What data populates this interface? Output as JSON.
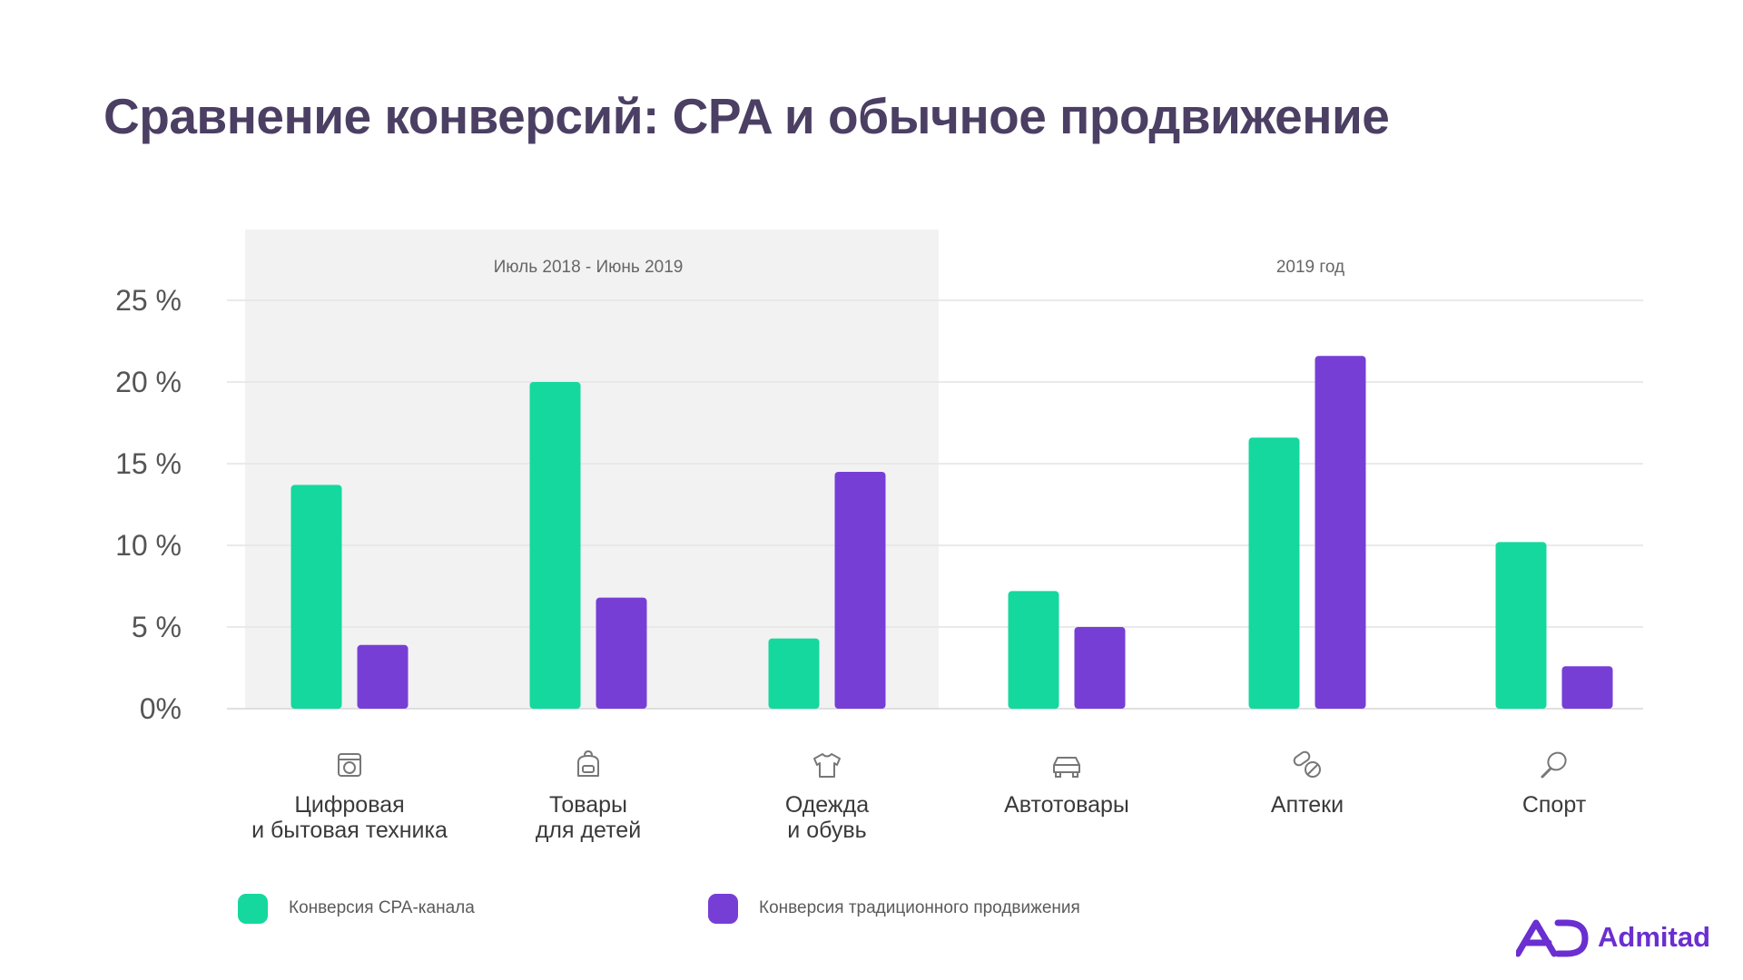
{
  "title": "Сравнение конверсий: CPA и обычное продвижение",
  "colors": {
    "title": "#4b3f63",
    "cpa": "#15d89e",
    "traditional": "#773ed6",
    "panel": "#f2f2f2",
    "grid": "#e4e4e4",
    "axis_text": "#555555",
    "brand": "#6a2fd0"
  },
  "chart_data": {
    "type": "bar",
    "periods": [
      {
        "label": "Июль 2018 - Июнь 2019",
        "categories": [
          0,
          1,
          2
        ],
        "shaded": true
      },
      {
        "label": "2019 год",
        "categories": [
          3,
          4,
          5
        ],
        "shaded": false
      }
    ],
    "categories": [
      {
        "lines": [
          "Цифровая",
          "и бытовая техника"
        ],
        "icon": "appliance-icon"
      },
      {
        "lines": [
          "Товары",
          "для детей"
        ],
        "icon": "backpack-icon"
      },
      {
        "lines": [
          "Одежда",
          "и обувь"
        ],
        "icon": "tshirt-icon"
      },
      {
        "lines": [
          "Автотовары"
        ],
        "icon": "car-icon"
      },
      {
        "lines": [
          "Аптеки"
        ],
        "icon": "pills-icon"
      },
      {
        "lines": [
          "Спорт"
        ],
        "icon": "racket-icon"
      }
    ],
    "series": [
      {
        "name": "Конверсия CPA-канала",
        "color": "#15d89e",
        "values": [
          13.7,
          20.0,
          4.3,
          7.2,
          16.6,
          10.2
        ]
      },
      {
        "name": "Конверсия традиционного продвижения",
        "color": "#773ed6",
        "values": [
          3.9,
          6.8,
          14.5,
          5.0,
          21.6,
          2.6
        ]
      }
    ],
    "ylim": [
      0,
      25
    ],
    "yticks": [
      {
        "value": 0,
        "label": "0%"
      },
      {
        "value": 5,
        "label": "5 %"
      },
      {
        "value": 10,
        "label": "10 %"
      },
      {
        "value": 15,
        "label": "15 %"
      },
      {
        "value": 20,
        "label": "20 %"
      },
      {
        "value": 25,
        "label": "25 %"
      }
    ],
    "grid": true,
    "legend": "bottom-left"
  },
  "legend": {
    "cpa_label": "Конверсия CPA-канала",
    "traditional_label": "Конверсия традиционного продвижения"
  },
  "logo": {
    "text": "Admitad"
  }
}
